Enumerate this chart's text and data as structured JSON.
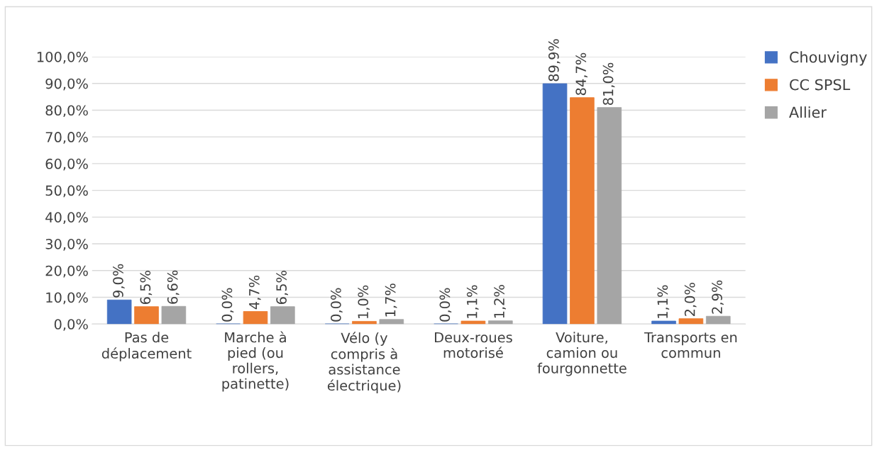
{
  "chart_data": {
    "type": "bar",
    "categories": [
      "Pas de\ndéplacement",
      "Marche à\npied (ou\nrollers,\npatinette)",
      "Vélo (y\ncompris à\nassistance\nélectrique)",
      "Deux-roues\nmotorisé",
      "Voiture,\ncamion ou\nfourgonnette",
      "Transports en\ncommun"
    ],
    "series": [
      {
        "name": "Chouvigny",
        "color": "#4472c4",
        "values": [
          9.0,
          0.0,
          0.0,
          0.0,
          89.9,
          1.1
        ],
        "value_labels": [
          "9,0%",
          "0,0%",
          "0,0%",
          "0,0%",
          "89,9%",
          "1,1%"
        ]
      },
      {
        "name": "CC SPSL",
        "color": "#ed7d31",
        "values": [
          6.5,
          4.7,
          1.0,
          1.1,
          84.7,
          2.0
        ],
        "value_labels": [
          "6,5%",
          "4,7%",
          "1,0%",
          "1,1%",
          "84,7%",
          "2,0%"
        ]
      },
      {
        "name": "Allier",
        "color": "#a5a5a5",
        "values": [
          6.6,
          6.5,
          1.7,
          1.2,
          81.0,
          2.9
        ],
        "value_labels": [
          "6,6%",
          "6,5%",
          "1,7%",
          "1,2%",
          "81,0%",
          "2,9%"
        ]
      }
    ],
    "ylim": [
      0,
      100
    ],
    "yticks": [
      {
        "value": 0,
        "label": "0,0%"
      },
      {
        "value": 10,
        "label": "10,0%"
      },
      {
        "value": 20,
        "label": "20,0%"
      },
      {
        "value": 30,
        "label": "30,0%"
      },
      {
        "value": 40,
        "label": "40,0%"
      },
      {
        "value": 50,
        "label": "50,0%"
      },
      {
        "value": 60,
        "label": "60,0%"
      },
      {
        "value": 70,
        "label": "70,0%"
      },
      {
        "value": 80,
        "label": "80,0%"
      },
      {
        "value": 90,
        "label": "90,0%"
      },
      {
        "value": 100,
        "label": "100,0%"
      }
    ],
    "grid": "y",
    "legend": "top right"
  }
}
